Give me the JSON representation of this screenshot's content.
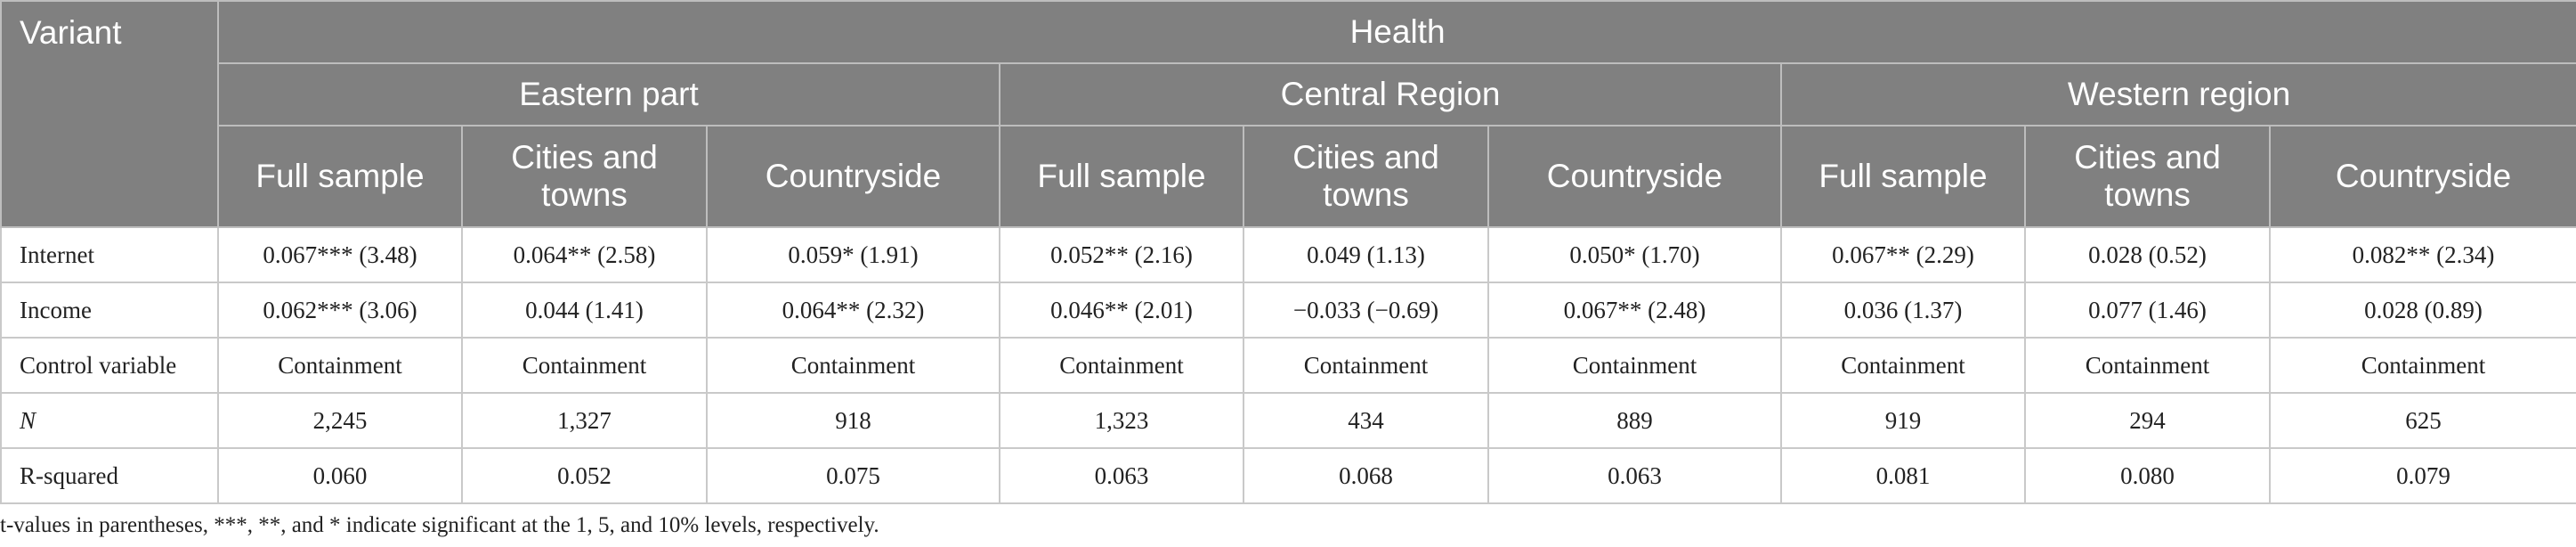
{
  "table": {
    "variant_header": "Variant",
    "top_header": "Health",
    "regions": [
      "Eastern part",
      "Central Region",
      "Western region"
    ],
    "subgroups": [
      [
        "Full sample",
        "Cities and towns",
        "Countryside"
      ],
      [
        "Full sample",
        "Cities and towns",
        "Countryside"
      ],
      [
        "Full sample",
        "Cities and towns",
        "Countryside"
      ]
    ],
    "rows": [
      {
        "label": "Internet",
        "italic": false,
        "cells": [
          "0.067*** (3.48)",
          "0.064** (2.58)",
          "0.059* (1.91)",
          "0.052** (2.16)",
          "0.049 (1.13)",
          "0.050* (1.70)",
          "0.067** (2.29)",
          "0.028 (0.52)",
          "0.082** (2.34)"
        ]
      },
      {
        "label": "Income",
        "italic": false,
        "cells": [
          "0.062*** (3.06)",
          "0.044 (1.41)",
          "0.064** (2.32)",
          "0.046** (2.01)",
          "−0.033 (−0.69)",
          "0.067** (2.48)",
          "0.036 (1.37)",
          "0.077 (1.46)",
          "0.028 (0.89)"
        ]
      },
      {
        "label": "Control variable",
        "italic": false,
        "cells": [
          "Containment",
          "Containment",
          "Containment",
          "Containment",
          "Containment",
          "Containment",
          "Containment",
          "Containment",
          "Containment"
        ]
      },
      {
        "label": "N",
        "italic": true,
        "cells": [
          "2,245",
          "1,327",
          "918",
          "1,323",
          "434",
          "889",
          "919",
          "294",
          "625"
        ]
      },
      {
        "label": "R-squared",
        "italic": false,
        "cells": [
          "0.060",
          "0.052",
          "0.075",
          "0.063",
          "0.068",
          "0.063",
          "0.081",
          "0.080",
          "0.079"
        ]
      }
    ]
  },
  "footnote": "t-values in parentheses, ***, **, and * indicate significant at the 1, 5, and 10% levels, respectively."
}
